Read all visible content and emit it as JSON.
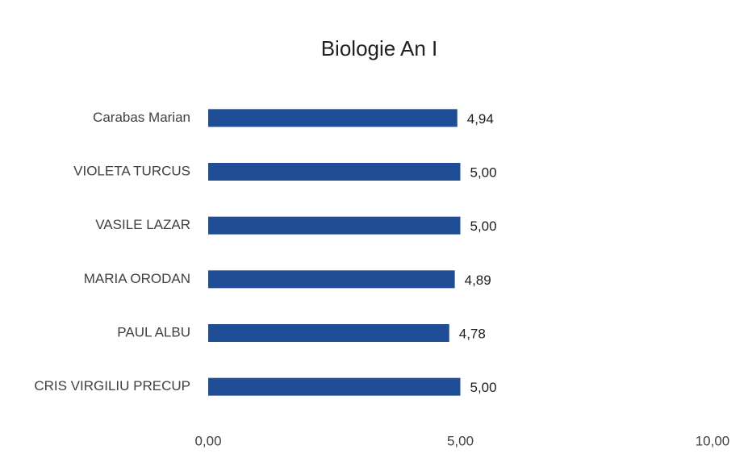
{
  "chart_data": {
    "type": "bar",
    "orientation": "horizontal",
    "title": "Biologie An I",
    "categories": [
      "Carabas Marian",
      "VIOLETA TURCUS",
      "VASILE LAZAR",
      "MARIA ORODAN",
      "PAUL ALBU",
      "CRIS VIRGILIU PRECUP"
    ],
    "values": [
      4.94,
      5.0,
      5.0,
      4.89,
      4.78,
      5.0
    ],
    "value_labels": [
      "4,94",
      "5,00",
      "5,00",
      "4,89",
      "4,78",
      "5,00"
    ],
    "color": "#1f4e96",
    "xlim": [
      0,
      10
    ],
    "xticks": [
      {
        "value": 0,
        "label": "0,00"
      },
      {
        "value": 5,
        "label": "5,00"
      },
      {
        "value": 10,
        "label": "10,00"
      }
    ],
    "grid": false
  }
}
